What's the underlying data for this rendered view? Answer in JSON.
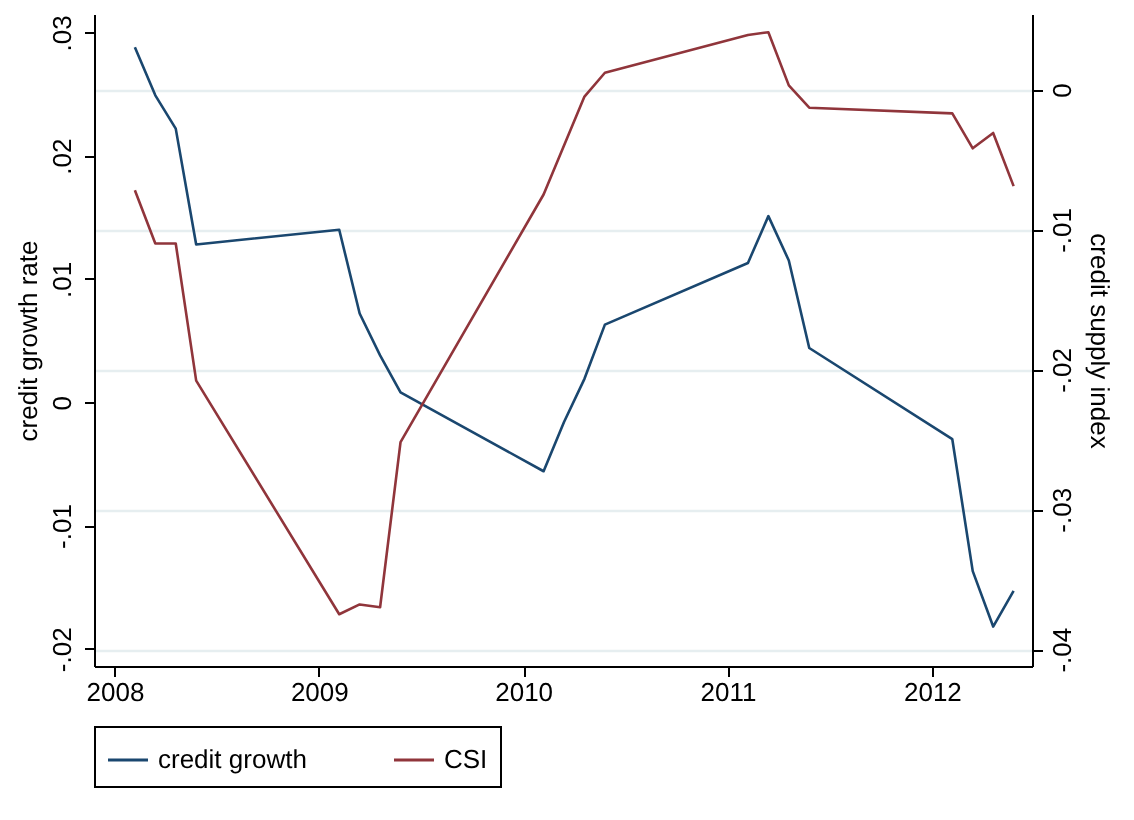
{
  "chart_data": {
    "type": "line",
    "xlabel": null,
    "ylabel": "credit growth rate",
    "y2label": "credit supply index",
    "x": [
      2008.1,
      2008.2,
      2008.3,
      2008.4,
      2009.1,
      2009.2,
      2009.3,
      2009.4,
      2010.1,
      2010.2,
      2010.3,
      2010.4,
      2011.1,
      2011.2,
      2011.3,
      2011.4,
      2012.1,
      2012.2,
      2012.3,
      2012.4
    ],
    "series": [
      {
        "name": "credit growth",
        "color": "#1a476f",
        "values": [
          0.0288,
          0.0249,
          0.0222,
          0.0128,
          0.014,
          0.0072,
          0.0038,
          0.0008,
          -0.0056,
          -0.0016,
          0.0019,
          0.0063,
          0.0113,
          0.0151,
          0.0115,
          0.0044,
          -0.003,
          -0.0137,
          -0.0182,
          -0.0153
        ]
      },
      {
        "name": "CSI",
        "color": "#90353b",
        "axis": "y2",
        "values": [
          -0.0072,
          -0.011,
          -0.011,
          -0.0208,
          -0.0375,
          -0.0368,
          -0.037,
          -0.0252,
          -0.0075,
          -0.004,
          -0.0005,
          0.0012,
          0.0039,
          0.0041,
          0.0003,
          -0.0013,
          -0.0017,
          -0.0042,
          -0.0031,
          -0.0069
        ]
      }
    ],
    "xlim": [
      2007.9,
      2012.49
    ],
    "xticks": [
      2008,
      2009,
      2010,
      2011,
      2012
    ],
    "ylim": [
      -0.0214,
      0.0315
    ],
    "yticks": [
      {
        "value": -0.02,
        "label": "-.02"
      },
      {
        "value": -0.01,
        "label": "-.01"
      },
      0,
      {
        "value": 0.01,
        "label": ".01"
      },
      {
        "value": 0.02,
        "label": ".02"
      },
      {
        "value": 0.03,
        "label": ".03"
      }
    ],
    "y2lim": [
      -0.0412,
      0.0054
    ],
    "y2ticks": [
      {
        "value": -0.04,
        "label": "-.04"
      },
      {
        "value": -0.03,
        "label": "-.03"
      },
      {
        "value": -0.02,
        "label": "-.02"
      },
      {
        "value": -0.01,
        "label": "-.01"
      },
      0
    ],
    "grid": "y",
    "legend": "bottom",
    "line_style": "solid",
    "marker": "none"
  }
}
